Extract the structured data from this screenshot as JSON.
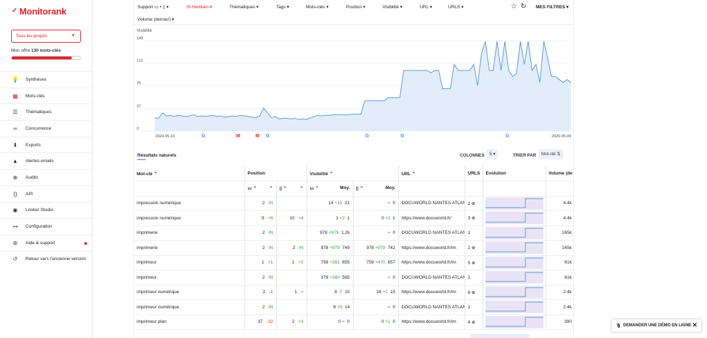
{
  "brand": {
    "name": "Monitorank",
    "accent": "#e1252b"
  },
  "sidebar": {
    "project_select": "Tous les projets",
    "offer_prefix": "Mon offre",
    "offer_value": "130 mots-clés",
    "usage_fraction": 0.88,
    "items": [
      {
        "label": "Synthèses",
        "icon": "bulb-icon"
      },
      {
        "label": "Mots-clés",
        "icon": "keywords-icon",
        "active": true
      },
      {
        "label": "Thématiques",
        "icon": "layers-icon"
      },
      {
        "label": "Concurrence",
        "icon": "binoculars-icon"
      },
      {
        "label": "Exports",
        "icon": "download-icon"
      },
      {
        "label": "Alertes emails",
        "icon": "alert-icon"
      },
      {
        "label": "Audits",
        "icon": "crosshair-icon"
      },
      {
        "label": "API",
        "icon": "braces-icon"
      },
      {
        "label": "Looker Studio",
        "icon": "looker-icon"
      },
      {
        "label": "Configuration",
        "icon": "toggle-icon"
      },
      {
        "label": "Aide & support",
        "icon": "lifebuoy-icon",
        "badge": true
      },
      {
        "label": "Retour vers l'ancienne version",
        "icon": "undo-icon"
      }
    ]
  },
  "filters": {
    "support": "Support",
    "location": "St Herblain",
    "thematiques": "Thématiques",
    "tags": "Tags",
    "mots_cles": "Mots-clés",
    "position": "Position",
    "visibilite": "Visibilité",
    "url": "URL",
    "urls": "URLS",
    "volume": "Volume (dernier)",
    "mes_filtres": "MES FILTRES"
  },
  "chart_data": {
    "type": "area",
    "ylabel": "Visibilité",
    "yticks": [
      0,
      37,
      75,
      112,
      149
    ],
    "ylim": [
      0,
      149
    ],
    "x_start": "2024-05-10",
    "x_end": "2025-05-09",
    "color": "#5b9bd5",
    "values": [
      22,
      21,
      30,
      25,
      26,
      24,
      26,
      25,
      24,
      25,
      27,
      24,
      25,
      24,
      25,
      26,
      24,
      25,
      23,
      24,
      25,
      24,
      26,
      25,
      24,
      23,
      22,
      25,
      38,
      30,
      22,
      24,
      20,
      21,
      21,
      20,
      21,
      19,
      20,
      19,
      22,
      24,
      26,
      25,
      26,
      26,
      27,
      27,
      27,
      27,
      27,
      28,
      28,
      28,
      50,
      50,
      50,
      50,
      50,
      50,
      55,
      55,
      55,
      55,
      100,
      100,
      100,
      100,
      100,
      100,
      100,
      96,
      100,
      100,
      70,
      70,
      70,
      110,
      100,
      100,
      100,
      100,
      110,
      75,
      128,
      148,
      100,
      100,
      148,
      100,
      148,
      100,
      90,
      95,
      148,
      110,
      148,
      100,
      110,
      80,
      148,
      120,
      90,
      90,
      85,
      80,
      85,
      80
    ],
    "markers": [
      {
        "type": "google-icon"
      },
      {
        "type": "gmail-icon"
      },
      {
        "type": "gmail-icon"
      },
      {
        "type": "google-icon"
      },
      {
        "type": "google-icon"
      },
      {
        "type": "google-icon"
      },
      {
        "type": "google-icon"
      }
    ]
  },
  "results": {
    "title": "Résultats naturels",
    "colonnes_label": "COLONNES",
    "colonnes_value": "5",
    "trier_label": "TRIER PAR",
    "trier_value": "Mot-clé",
    "headers": {
      "keyword": "Mot-clé",
      "position": "Position",
      "visibilite": "Visibilité",
      "url": "URL",
      "urls": "URLS",
      "evolution": "Evolution",
      "volume": "Volume (de"
    },
    "subheaders": {
      "moy": "Moy."
    },
    "rows": [
      {
        "kw": "impression numérique",
        "p1": "2",
        "p1d": "IN",
        "p2": "",
        "p2d": "",
        "v1": "14",
        "v1d": "+15",
        "v1m": "21",
        "v2": "",
        "v2d": "=",
        "v2m": "0",
        "url": "DOCUWORLD NANTES ATLANT",
        "urls": "2 ⊕",
        "vol": "4.4k",
        "p1dc": "green",
        "v1dc": "green",
        "v2dc": "green"
      },
      {
        "kw": "impression numérique",
        "p1": "9",
        "p1d": "+6",
        "p2": "10",
        "p2d": "+4",
        "v1": "1",
        "v1d": "+2",
        "v1m": "1",
        "v2": "0",
        "v2d": "+1",
        "v2m": "1",
        "url": "https://www.docuworld.fr/",
        "urls": "3 ⊕",
        "vol": "4.4k",
        "p1dc": "green",
        "p2dc": "green",
        "v1dc": "green",
        "v2dc": "green"
      },
      {
        "kw": "imprimerie",
        "p1": "2",
        "p1d": "IN",
        "p2": "",
        "p2d": "",
        "v1": "978",
        "v1d": "+979",
        "v1m": "1.2k",
        "v2": "",
        "v2d": "=",
        "v2m": "0",
        "url": "DOCUWORLD NANTES ATLANT",
        "urls": "1",
        "vol": "165k",
        "p1dc": "green",
        "v1dc": "green",
        "v2dc": "green"
      },
      {
        "kw": "imprimerie",
        "p1": "2",
        "p1d": "IN",
        "p2": "2",
        "p2d": "IN",
        "v1": "978",
        "v1d": "+979",
        "v1m": "749",
        "v2": "978",
        "v2d": "+979",
        "v2m": "742",
        "url": "https://www.docuworld.fr/im",
        "urls": "2 ⊕",
        "vol": "165k",
        "p1dc": "green",
        "p2dc": "green",
        "v1dc": "green",
        "v2dc": "green"
      },
      {
        "kw": "imprimeur",
        "p1": "1",
        "p1d": "+1",
        "p2": "1",
        "p2d": "+2",
        "v1": "759",
        "v1d": "+381",
        "v1m": "655",
        "v2": "759",
        "v2d": "+470",
        "v2m": "657",
        "url": "https://www.docuworld.fr/im",
        "urls": "5 ⊕",
        "vol": "61k",
        "p1dc": "green",
        "p2dc": "green",
        "v1dc": "green",
        "v2dc": "green"
      },
      {
        "kw": "imprimeur",
        "p1": "2",
        "p1d": "IN",
        "p2": "",
        "p2d": "",
        "v1": "379",
        "v1d": "+380",
        "v1m": "565",
        "v2": "",
        "v2d": "=",
        "v2m": "0",
        "url": "DOCUWORLD NANTES ATLANT",
        "urls": "1",
        "vol": "61k",
        "p1dc": "green",
        "v1dc": "green",
        "v2dc": "green"
      },
      {
        "kw": "imprimeur numérique",
        "p1": "2",
        "p1d": "-1",
        "p2": "1",
        "p2d": "=",
        "v1": "8",
        "v1d": "-7",
        "v1m": "15",
        "v2": "16",
        "v2d": "+1",
        "v2m": "15",
        "url": "https://www.docuworld.fr/im",
        "urls": "8 ⊕",
        "vol": "2.4k",
        "p1dc": "red2",
        "p2dc": "green",
        "v1dc": "red2",
        "v2dc": "green"
      },
      {
        "kw": "imprimeur numérique",
        "p1": "2",
        "p1d": "IN",
        "p2": "",
        "p2d": "",
        "v1": "8",
        "v1d": "+9",
        "v1m": "14",
        "v2": "",
        "v2d": "=",
        "v2m": "0",
        "url": "DOCUWORLD NANTES ATLANT",
        "urls": "1",
        "vol": "2.4k",
        "p1dc": "green",
        "v1dc": "green",
        "v2dc": "green"
      },
      {
        "kw": "imprimeur plan",
        "p1": "37",
        "p1d": "-32",
        "p2": "2",
        "p2d": "+3",
        "v1": "0",
        "v1d": "=",
        "v1m": "0",
        "v2": "0",
        "v2d": "+1",
        "v2m": "0",
        "url": "https://www.docuworld.fr/im",
        "urls": "4 ⊕",
        "vol": "390",
        "p1dc": "red2",
        "p2dc": "green",
        "v1dc": "green",
        "v2dc": "green"
      }
    ]
  },
  "demo_button": "DEMANDER UNE DÉMO EN LIGNE"
}
